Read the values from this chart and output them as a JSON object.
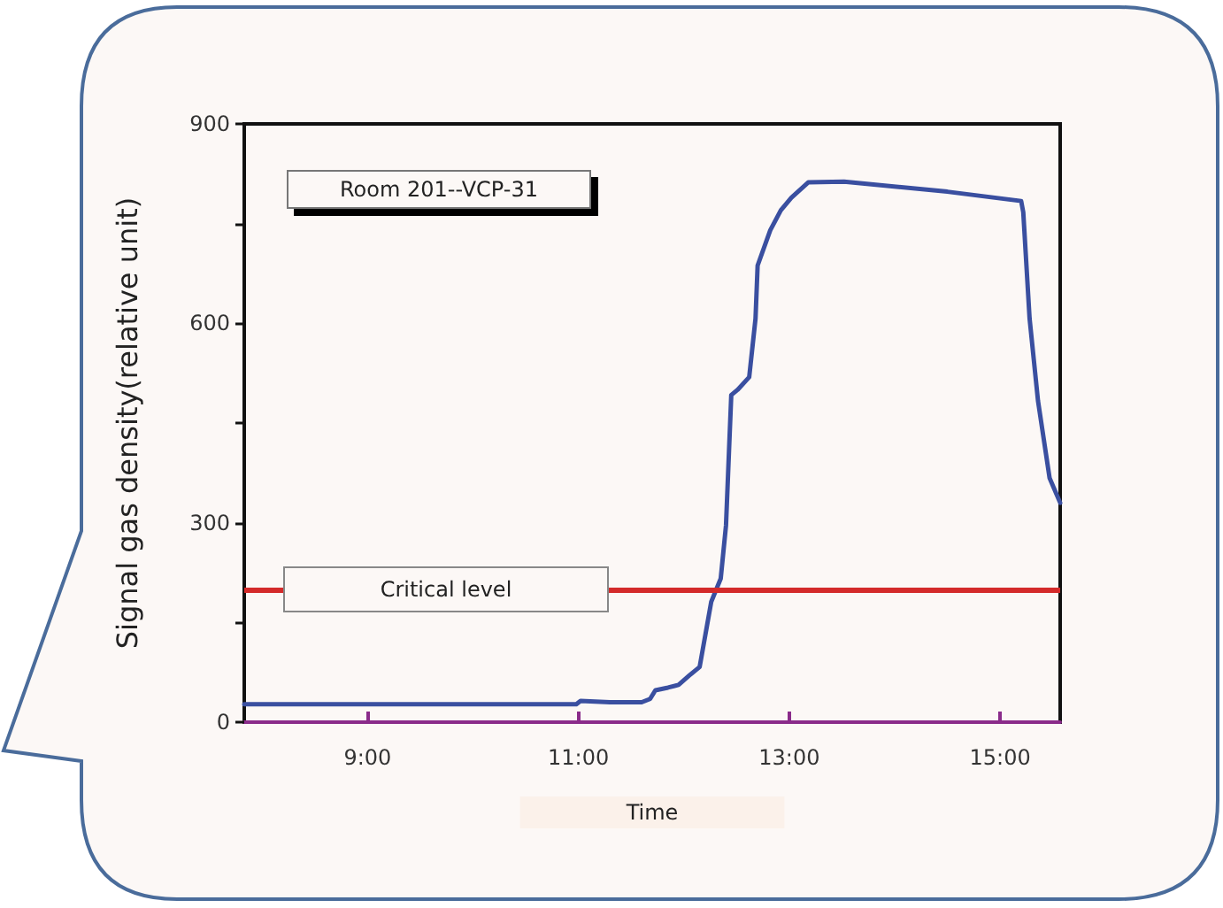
{
  "chart_data": {
    "type": "line",
    "xlabel": "Time",
    "ylabel": "Signal gas density(relative unit)",
    "annotations": [
      "Room 201--VCP-31"
    ],
    "series": [
      {
        "color": "#3a4fa0",
        "x": [
          7.83,
          9.0,
          10.98,
          11.02,
          11.3,
          11.6,
          11.68,
          11.73,
          11.85,
          11.95,
          12.05,
          12.15,
          12.26,
          12.35,
          12.4,
          12.45,
          12.51,
          12.62,
          12.68,
          12.7,
          12.82,
          12.92,
          13.02,
          13.18,
          13.52,
          14.5,
          15.2,
          15.22,
          15.28,
          15.36,
          15.47,
          15.57
        ],
        "values": [
          27,
          27,
          27,
          32,
          30,
          30,
          35,
          48,
          52,
          56,
          70,
          83,
          181,
          216,
          296,
          492,
          500,
          519,
          607,
          687,
          740,
          770,
          789,
          812,
          813,
          798,
          784,
          767,
          607,
          483,
          367,
          330
        ]
      }
    ],
    "xlim": [
      7.83,
      15.57
    ],
    "xticks": [
      {
        "value": 9,
        "label": "9:00"
      },
      {
        "value": 11,
        "label": "11:00"
      },
      {
        "value": 13,
        "label": "13:00"
      },
      {
        "value": 15,
        "label": "15:00"
      }
    ],
    "ylim": [
      0,
      900
    ],
    "yticks": [
      0,
      {
        "value": 150,
        "label": null
      },
      300,
      {
        "value": 450,
        "label": null
      },
      600,
      {
        "value": 750,
        "label": null
      },
      900
    ],
    "ref_lines": [
      {
        "axis": "y",
        "value": 200,
        "label": "Critical level",
        "color": "#d42a2a"
      }
    ],
    "grid": false,
    "marker": "none",
    "line_style": "solid"
  }
}
